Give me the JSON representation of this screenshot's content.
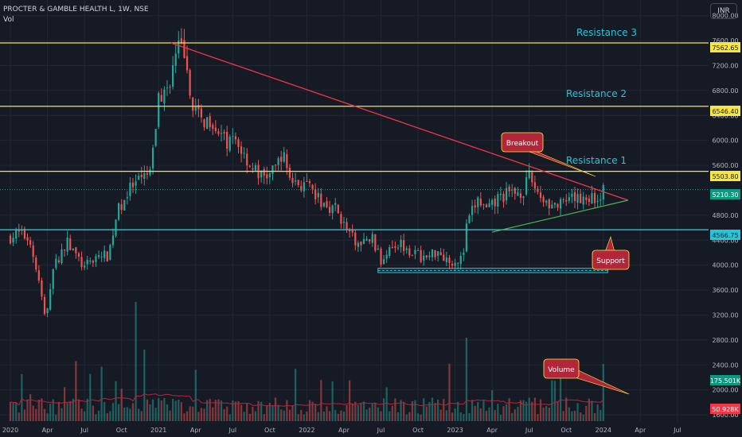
{
  "header": {
    "symbol_title": "PROCTER & GAMBLE HEALTH L, 1W, NSE",
    "volume_label": "Vol"
  },
  "currency": "INR",
  "colors": {
    "background": "#161a25",
    "grid": "#232733",
    "up": "#26a69a",
    "down": "#ef5350",
    "resistance_line": "#f5e642",
    "support_line": "#26c6da",
    "trendline": "#f23645",
    "triangle_support": "#4caf50",
    "callout": "#b2263a",
    "callout_text": "#ffffff",
    "callout_border": "#ffeb3b",
    "resistance_text": "#26c6da",
    "axis_text": "#b2b5be",
    "price_tag": "#089981",
    "ma_volume": "#b2263a"
  },
  "chart_data": {
    "type": "candlestick",
    "ylim": [
      1500,
      8250
    ],
    "yticks": [
      {
        "value": 8000,
        "label": "8000.00"
      },
      {
        "value": 7600,
        "label": "7600.00"
      },
      {
        "value": 7200,
        "label": "7200.00"
      },
      {
        "value": 6800,
        "label": "6800.00"
      },
      {
        "value": 6400,
        "label": "6400.00"
      },
      {
        "value": 6000,
        "label": "6000.00"
      },
      {
        "value": 5600,
        "label": "5600.00"
      },
      {
        "value": 4800,
        "label": "4800.00"
      },
      {
        "value": 4400,
        "label": "4400.00"
      },
      {
        "value": 4000,
        "label": "4000.00"
      },
      {
        "value": 3600,
        "label": "3600.00"
      },
      {
        "value": 3200,
        "label": "3200.00"
      },
      {
        "value": 2800,
        "label": "2800.00"
      },
      {
        "value": 2400,
        "label": "2400.00"
      },
      {
        "value": 2000,
        "label": "2000.00"
      },
      {
        "value": 1600,
        "label": "1600.00"
      }
    ],
    "xticks": [
      "2020",
      "Apr",
      "Jul",
      "Oct",
      "2021",
      "Apr",
      "Jul",
      "Oct",
      "2022",
      "Apr",
      "Jul",
      "Oct",
      "2023",
      "Apr",
      "Jul",
      "Oct",
      "2024",
      "Apr",
      "Jul"
    ],
    "horizontal_levels": [
      {
        "name": "Resistance 3",
        "value": 7562.65,
        "label": "7562.65",
        "kind": "resistance"
      },
      {
        "name": "Resistance 2",
        "value": 6546.4,
        "label": "6546.40",
        "kind": "resistance"
      },
      {
        "name": "Resistance 1",
        "value": 5503.8,
        "label": "5503.80",
        "kind": "resistance"
      },
      {
        "name": "",
        "value": 4566.75,
        "label": "4566.75",
        "kind": "support"
      }
    ],
    "last_price": {
      "value": 5210.3,
      "label": "5210.30"
    },
    "volume_tags": {
      "last": "175.501K",
      "average": "50.928K"
    },
    "trendline_start": {
      "x": "2021-02",
      "y": 7562.65
    },
    "trendline_end": {
      "x": "2024-03",
      "y": 5040
    },
    "triangle_support_start": {
      "x": "2023-04",
      "y": 4530
    },
    "triangle_support_end": {
      "x": "2024-03",
      "y": 5040
    },
    "support_zone": [
      3880,
      3950
    ],
    "annotations": [
      {
        "text": "Breakout"
      },
      {
        "text": "Support"
      },
      {
        "text": "Volume"
      }
    ],
    "price_anchors": [
      [
        2020.0,
        4450
      ],
      [
        2020.05,
        4510
      ],
      [
        2020.13,
        4420
      ],
      [
        2020.2,
        3650
      ],
      [
        2020.24,
        3050
      ],
      [
        2020.28,
        3900
      ],
      [
        2020.38,
        4380
      ],
      [
        2020.5,
        3950
      ],
      [
        2020.58,
        4150
      ],
      [
        2020.66,
        4150
      ],
      [
        2020.72,
        4850
      ],
      [
        2020.8,
        5200
      ],
      [
        2020.88,
        5350
      ],
      [
        2020.95,
        5500
      ],
      [
        2021.0,
        6700
      ],
      [
        2021.05,
        6750
      ],
      [
        2021.1,
        7200
      ],
      [
        2021.13,
        7450
      ],
      [
        2021.17,
        7520
      ],
      [
        2021.2,
        6800
      ],
      [
        2021.28,
        6300
      ],
      [
        2021.36,
        6350
      ],
      [
        2021.45,
        5950
      ],
      [
        2021.52,
        6000
      ],
      [
        2021.62,
        5600
      ],
      [
        2021.7,
        5400
      ],
      [
        2021.78,
        5500
      ],
      [
        2021.83,
        5800
      ],
      [
        2021.9,
        5350
      ],
      [
        2022.0,
        5250
      ],
      [
        2022.1,
        5000
      ],
      [
        2022.2,
        4900
      ],
      [
        2022.28,
        4500
      ],
      [
        2022.36,
        4300
      ],
      [
        2022.44,
        4450
      ],
      [
        2022.5,
        4050
      ],
      [
        2022.56,
        4350
      ],
      [
        2022.64,
        4350
      ],
      [
        2022.72,
        4200
      ],
      [
        2022.8,
        4100
      ],
      [
        2022.88,
        4250
      ],
      [
        2022.96,
        4060
      ],
      [
        2023.02,
        4100
      ],
      [
        2023.05,
        4080
      ],
      [
        2023.08,
        4650
      ],
      [
        2023.15,
        5050
      ],
      [
        2023.22,
        4850
      ],
      [
        2023.3,
        5100
      ],
      [
        2023.38,
        5150
      ],
      [
        2023.46,
        5200
      ],
      [
        2023.5,
        5400
      ],
      [
        2023.58,
        5100
      ],
      [
        2023.66,
        4950
      ],
      [
        2023.72,
        4950
      ],
      [
        2023.8,
        5050
      ],
      [
        2023.88,
        5100
      ],
      [
        2023.96,
        5050
      ],
      [
        2024.0,
        5210
      ]
    ]
  },
  "chart_labels": {
    "resistance3": "Resistance 3",
    "resistance2": "Resistance 2",
    "resistance1": "Resistance 1",
    "level_r3": "7562.65",
    "level_r2": "6546.40",
    "level_r1": "5503.80",
    "level_s": "4566.75",
    "last_price": "5210.30",
    "vol_last": "175.501K",
    "vol_avg": "50.928K",
    "callout_breakout": "Breakout",
    "callout_support": "Support",
    "callout_volume": "Volume"
  }
}
